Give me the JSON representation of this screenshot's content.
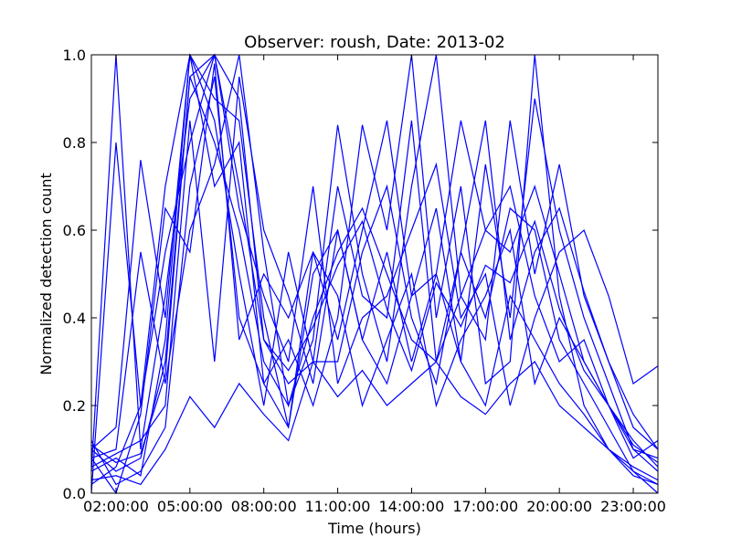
{
  "chart_data": {
    "type": "line",
    "title": "Observer: roush, Date: 2013-02",
    "xlabel": "Time (hours)",
    "ylabel": "Normalized detection count",
    "xlim": [
      "01:00:00",
      "24:00:00"
    ],
    "ylim": [
      0,
      1.0
    ],
    "x_ticks": [
      "02:00:00",
      "05:00:00",
      "08:00:00",
      "11:00:00",
      "14:00:00",
      "17:00:00",
      "20:00:00",
      "23:00:00"
    ],
    "y_ticks": [
      "0.0",
      "0.2",
      "0.4",
      "0.6",
      "0.8",
      "1.0"
    ],
    "grid": false,
    "legend": "none",
    "line_color": "#0000ff",
    "series": [
      {
        "x": [
          "01:00:00",
          "02:00:00",
          "03:00:00",
          "04:00:00",
          "05:00:00",
          "06:00:00",
          "07:00:00",
          "08:00:00",
          "09:00:00",
          "10:00:00",
          "11:00:00",
          "12:00:00",
          "13:00:00",
          "14:00:00",
          "15:00:00",
          "16:00:00",
          "17:00:00",
          "18:00:00",
          "19:00:00",
          "20:00:00",
          "21:00:00",
          "22:00:00",
          "23:00:00",
          "24:00:00"
        ],
        "y": [
          0.1,
          0.05,
          0.08,
          0.3,
          0.95,
          0.8,
          0.6,
          0.3,
          0.2,
          0.4,
          0.55,
          0.65,
          0.5,
          0.35,
          0.3,
          0.45,
          0.6,
          0.55,
          0.7,
          0.5,
          0.3,
          0.2,
          0.1,
          0.05
        ]
      },
      {
        "x": [
          "01:00:00",
          "02:00:00",
          "03:00:00",
          "04:00:00",
          "05:00:00",
          "06:00:00",
          "07:00:00",
          "08:00:00",
          "09:00:00",
          "10:00:00",
          "11:00:00",
          "12:00:00",
          "13:00:00",
          "14:00:00",
          "15:00:00",
          "16:00:00",
          "17:00:00",
          "18:00:00",
          "19:00:00",
          "20:00:00",
          "21:00:00",
          "22:00:00",
          "23:00:00",
          "24:00:00"
        ],
        "y": [
          0.05,
          1.0,
          0.1,
          0.45,
          0.9,
          1.0,
          0.7,
          0.35,
          0.25,
          0.3,
          0.7,
          0.45,
          0.4,
          0.85,
          0.3,
          0.55,
          0.4,
          0.65,
          0.6,
          0.35,
          0.25,
          0.15,
          0.05,
          0.0
        ]
      },
      {
        "x": [
          "01:00:00",
          "02:00:00",
          "03:00:00",
          "04:00:00",
          "05:00:00",
          "06:00:00",
          "07:00:00",
          "08:00:00",
          "09:00:00",
          "10:00:00",
          "11:00:00",
          "12:00:00",
          "13:00:00",
          "14:00:00",
          "15:00:00",
          "16:00:00",
          "17:00:00",
          "18:00:00",
          "19:00:00",
          "20:00:00",
          "21:00:00",
          "22:00:00",
          "23:00:00",
          "24:00:00"
        ],
        "y": [
          0.0,
          0.8,
          0.2,
          0.7,
          1.0,
          0.9,
          0.85,
          0.4,
          0.15,
          0.55,
          0.35,
          0.6,
          0.85,
          0.45,
          0.5,
          0.3,
          0.75,
          0.4,
          0.9,
          0.6,
          0.4,
          0.25,
          0.1,
          0.08
        ]
      },
      {
        "x": [
          "01:00:00",
          "02:00:00",
          "03:00:00",
          "04:00:00",
          "05:00:00",
          "06:00:00",
          "07:00:00",
          "08:00:00",
          "09:00:00",
          "10:00:00",
          "11:00:00",
          "12:00:00",
          "13:00:00",
          "14:00:00",
          "15:00:00",
          "16:00:00",
          "17:00:00",
          "18:00:00",
          "19:00:00",
          "20:00:00",
          "21:00:00",
          "22:00:00",
          "23:00:00",
          "24:00:00"
        ],
        "y": [
          0.08,
          0.1,
          0.55,
          0.25,
          0.6,
          0.75,
          1.0,
          0.55,
          0.2,
          0.35,
          0.84,
          0.5,
          0.3,
          0.7,
          1.0,
          0.45,
          0.35,
          0.85,
          0.5,
          0.75,
          0.45,
          0.3,
          0.15,
          0.1
        ]
      },
      {
        "x": [
          "01:00:00",
          "02:00:00",
          "03:00:00",
          "04:00:00",
          "05:00:00",
          "06:00:00",
          "07:00:00",
          "08:00:00",
          "09:00:00",
          "10:00:00",
          "11:00:00",
          "12:00:00",
          "13:00:00",
          "14:00:00",
          "15:00:00",
          "16:00:00",
          "17:00:00",
          "18:00:00",
          "19:00:00",
          "20:00:00",
          "21:00:00",
          "22:00:00",
          "23:00:00",
          "24:00:00"
        ],
        "y": [
          0.12,
          0.02,
          0.05,
          0.15,
          0.7,
          0.95,
          0.4,
          0.25,
          0.35,
          0.2,
          0.4,
          0.84,
          0.6,
          1.0,
          0.4,
          0.7,
          0.25,
          0.3,
          1.0,
          0.45,
          0.2,
          0.1,
          0.05,
          0.02
        ]
      },
      {
        "x": [
          "01:00:00",
          "02:00:00",
          "03:00:00",
          "04:00:00",
          "05:00:00",
          "06:00:00",
          "07:00:00",
          "08:00:00",
          "09:00:00",
          "10:00:00",
          "11:00:00",
          "12:00:00",
          "13:00:00",
          "14:00:00",
          "15:00:00",
          "16:00:00",
          "17:00:00",
          "18:00:00",
          "19:00:00",
          "20:00:00",
          "21:00:00",
          "22:00:00",
          "23:00:00",
          "24:00:00"
        ],
        "y": [
          0.06,
          0.09,
          0.12,
          0.2,
          0.85,
          0.3,
          0.95,
          0.6,
          0.45,
          0.25,
          0.6,
          0.35,
          0.55,
          0.3,
          0.5,
          0.85,
          0.6,
          0.7,
          0.45,
          0.3,
          0.35,
          0.2,
          0.08,
          0.12
        ]
      },
      {
        "x": [
          "01:00:00",
          "02:00:00",
          "03:00:00",
          "04:00:00",
          "05:00:00",
          "06:00:00",
          "07:00:00",
          "08:00:00",
          "09:00:00",
          "10:00:00",
          "11:00:00",
          "12:00:00",
          "13:00:00",
          "14:00:00",
          "15:00:00",
          "16:00:00",
          "17:00:00",
          "18:00:00",
          "19:00:00",
          "20:00:00",
          "21:00:00",
          "22:00:00",
          "23:00:00",
          "24:00:00"
        ],
        "y": [
          0.03,
          0.04,
          0.02,
          0.1,
          0.22,
          0.15,
          0.25,
          0.18,
          0.12,
          0.3,
          0.22,
          0.28,
          0.2,
          0.25,
          0.3,
          0.22,
          0.18,
          0.25,
          0.3,
          0.2,
          0.15,
          0.1,
          0.06,
          0.03
        ]
      },
      {
        "x": [
          "01:00:00",
          "02:00:00",
          "03:00:00",
          "04:00:00",
          "05:00:00",
          "06:00:00",
          "07:00:00",
          "08:00:00",
          "09:00:00",
          "10:00:00",
          "11:00:00",
          "12:00:00",
          "13:00:00",
          "14:00:00",
          "15:00:00",
          "16:00:00",
          "17:00:00",
          "18:00:00",
          "19:00:00",
          "20:00:00",
          "21:00:00",
          "22:00:00",
          "23:00:00",
          "24:00:00"
        ],
        "y": [
          0.1,
          0.15,
          0.76,
          0.4,
          1.0,
          0.85,
          0.5,
          0.2,
          0.55,
          0.3,
          0.3,
          0.55,
          0.7,
          0.4,
          0.25,
          0.55,
          0.85,
          0.35,
          0.55,
          0.65,
          0.46,
          0.3,
          0.18,
          0.1
        ]
      },
      {
        "x": [
          "01:00:00",
          "02:00:00",
          "03:00:00",
          "04:00:00",
          "05:00:00",
          "06:00:00",
          "07:00:00",
          "08:00:00",
          "09:00:00",
          "10:00:00",
          "11:00:00",
          "12:00:00",
          "13:00:00",
          "14:00:00",
          "15:00:00",
          "16:00:00",
          "17:00:00",
          "18:00:00",
          "19:00:00",
          "20:00:00",
          "21:00:00",
          "22:00:00",
          "23:00:00",
          "24:00:00"
        ],
        "y": [
          0.02,
          0.06,
          0.2,
          0.55,
          0.8,
          1.0,
          0.65,
          0.45,
          0.3,
          0.7,
          0.25,
          0.4,
          0.45,
          0.6,
          0.75,
          0.4,
          0.5,
          0.2,
          0.4,
          0.55,
          0.6,
          0.45,
          0.25,
          0.29
        ]
      },
      {
        "x": [
          "01:00:00",
          "02:00:00",
          "03:00:00",
          "04:00:00",
          "05:00:00",
          "06:00:00",
          "07:00:00",
          "08:00:00",
          "09:00:00",
          "10:00:00",
          "11:00:00",
          "12:00:00",
          "13:00:00",
          "14:00:00",
          "15:00:00",
          "16:00:00",
          "17:00:00",
          "18:00:00",
          "19:00:00",
          "20:00:00",
          "21:00:00",
          "22:00:00",
          "23:00:00",
          "24:00:00"
        ],
        "y": [
          0.08,
          0.0,
          0.18,
          0.65,
          0.55,
          0.98,
          0.35,
          0.5,
          0.4,
          0.55,
          0.45,
          0.2,
          0.35,
          0.5,
          0.2,
          0.35,
          0.45,
          0.6,
          0.25,
          0.4,
          0.3,
          0.2,
          0.12,
          0.06
        ]
      },
      {
        "x": [
          "01:00:00",
          "02:00:00",
          "03:00:00",
          "04:00:00",
          "05:00:00",
          "06:00:00",
          "07:00:00",
          "08:00:00",
          "09:00:00",
          "10:00:00",
          "11:00:00",
          "12:00:00",
          "13:00:00",
          "14:00:00",
          "15:00:00",
          "16:00:00",
          "17:00:00",
          "18:00:00",
          "19:00:00",
          "20:00:00",
          "21:00:00",
          "22:00:00",
          "23:00:00",
          "24:00:00"
        ],
        "y": [
          0.05,
          0.08,
          0.04,
          0.35,
          1.0,
          0.7,
          0.8,
          0.25,
          0.15,
          0.5,
          0.6,
          0.35,
          0.25,
          0.45,
          0.65,
          0.3,
          0.2,
          0.45,
          0.35,
          0.25,
          0.18,
          0.1,
          0.04,
          0.02
        ]
      },
      {
        "x": [
          "01:00:00",
          "02:00:00",
          "03:00:00",
          "04:00:00",
          "05:00:00",
          "06:00:00",
          "07:00:00",
          "08:00:00",
          "09:00:00",
          "10:00:00",
          "11:00:00",
          "12:00:00",
          "13:00:00",
          "14:00:00",
          "15:00:00",
          "16:00:00",
          "17:00:00",
          "18:00:00",
          "19:00:00",
          "20:00:00",
          "21:00:00",
          "22:00:00",
          "23:00:00",
          "24:00:00"
        ],
        "y": [
          0.11,
          0.07,
          0.09,
          0.27,
          0.95,
          1.0,
          0.9,
          0.35,
          0.28,
          0.38,
          0.52,
          0.62,
          0.42,
          0.28,
          0.48,
          0.38,
          0.52,
          0.48,
          0.62,
          0.42,
          0.28,
          0.2,
          0.11,
          0.07
        ]
      }
    ]
  }
}
